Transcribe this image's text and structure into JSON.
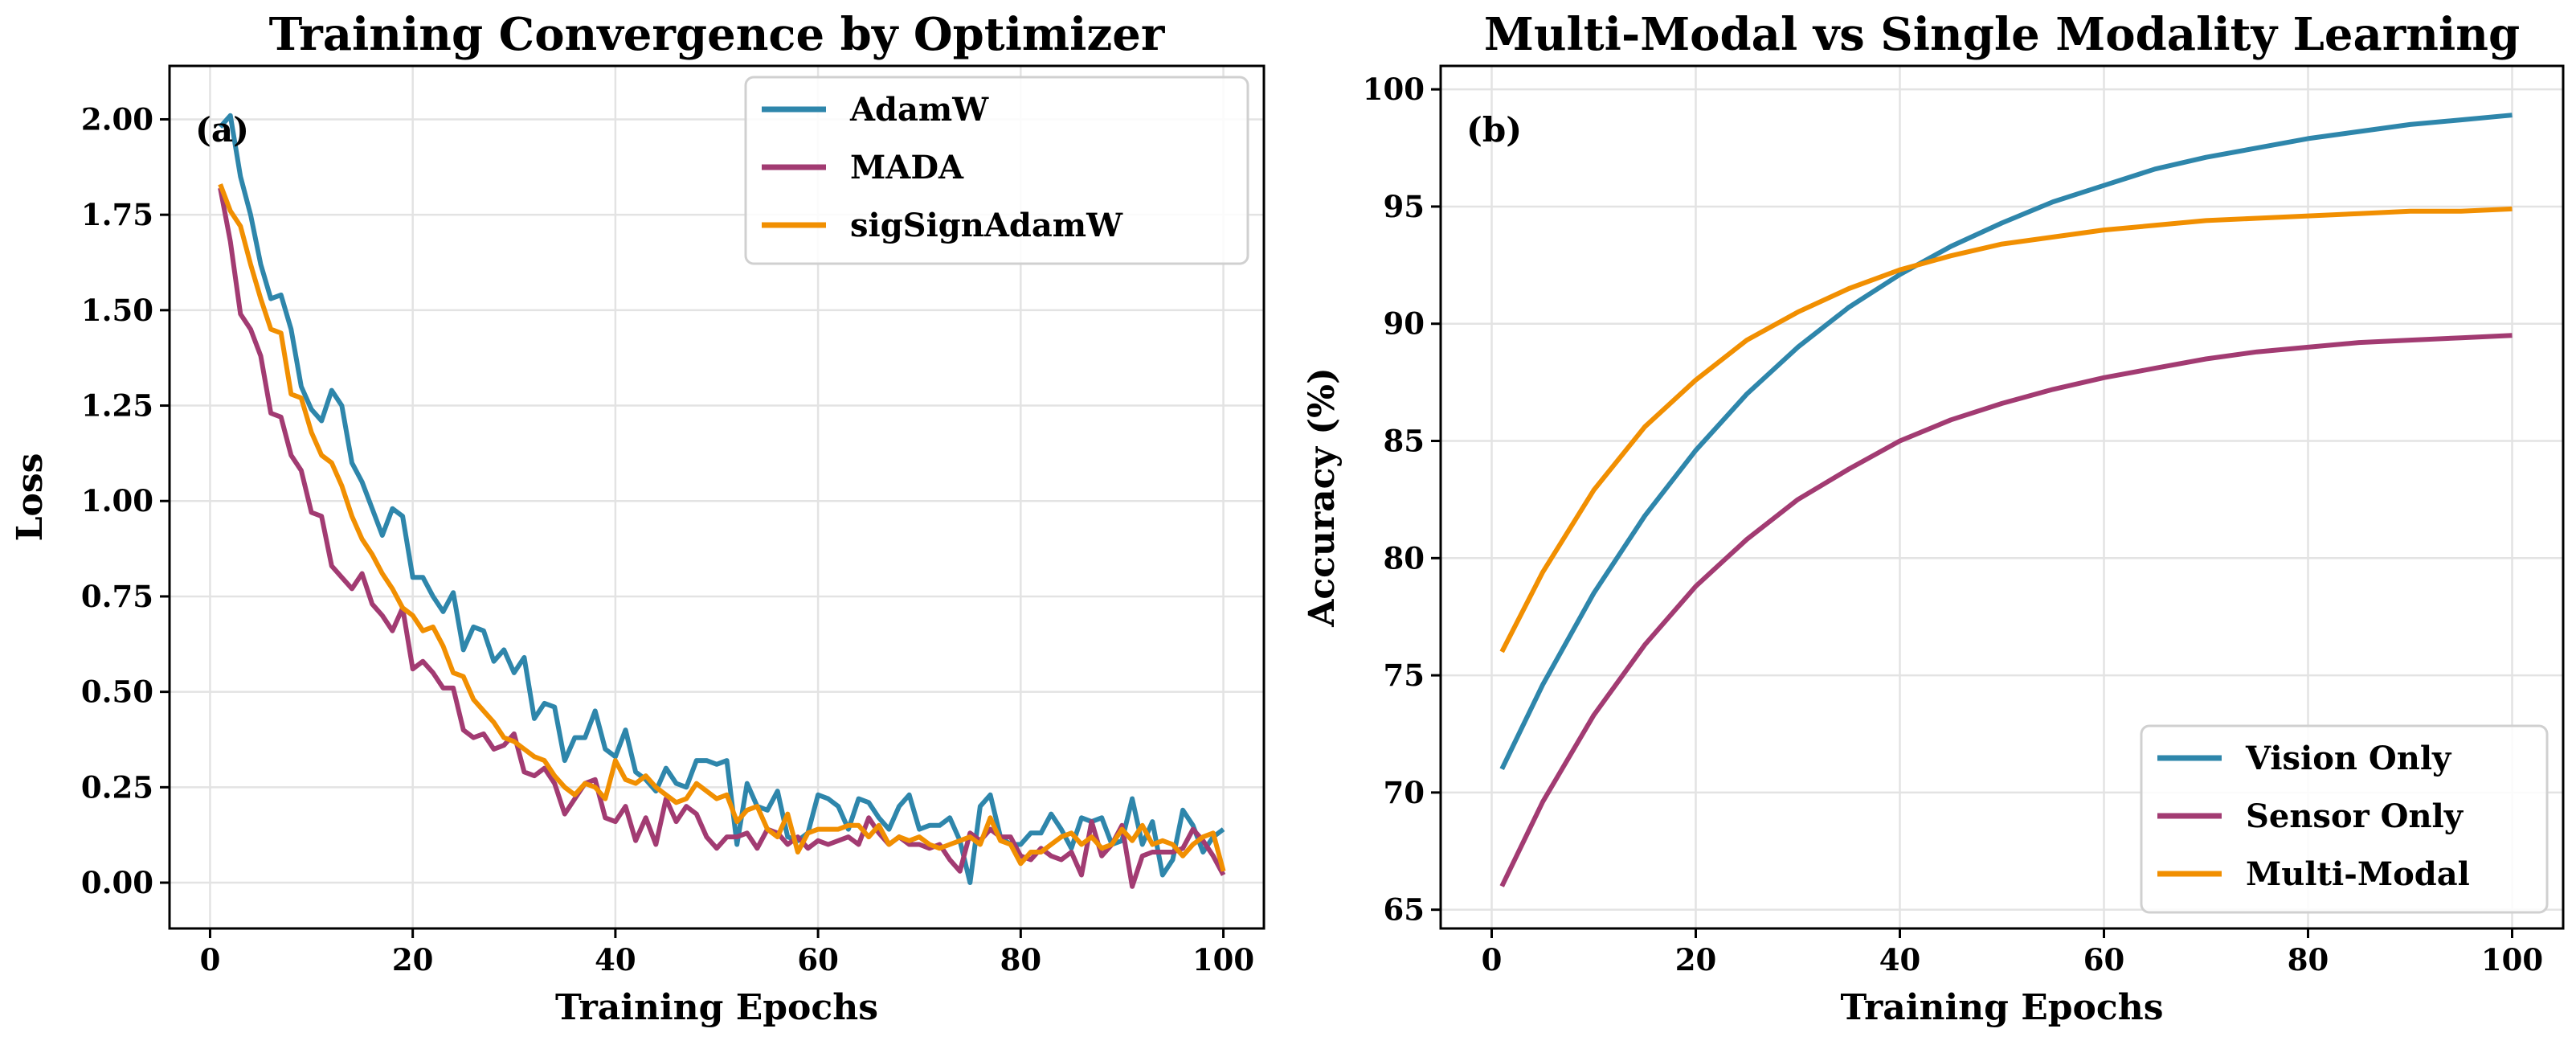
{
  "colors": {
    "blue": "#2e86ab",
    "magenta": "#a23b72",
    "orange": "#f18f01"
  },
  "chart_data": [
    {
      "type": "line",
      "title": "Training Convergence by Optimizer",
      "panel_label": "(a)",
      "xlabel": "Training Epochs",
      "ylabel": "Loss",
      "xlim": [
        -4,
        104
      ],
      "ylim": [
        -0.12,
        2.14
      ],
      "xticks": [
        0,
        20,
        40,
        60,
        80,
        100
      ],
      "xtick_labels": [
        "0",
        "20",
        "40",
        "60",
        "80",
        "100"
      ],
      "yticks": [
        0,
        0.25,
        0.5,
        0.75,
        1.0,
        1.25,
        1.5,
        1.75,
        2.0
      ],
      "ytick_labels": [
        "0.00",
        "0.25",
        "0.50",
        "0.75",
        "1.00",
        "1.25",
        "1.50",
        "1.75",
        "2.00"
      ],
      "grid": true,
      "legend_position": "top-right",
      "x_start": 1,
      "series": [
        {
          "name": "AdamW",
          "color": "#2e86ab",
          "values": [
            1.98,
            2.01,
            1.85,
            1.75,
            1.62,
            1.53,
            1.54,
            1.45,
            1.3,
            1.24,
            1.21,
            1.29,
            1.25,
            1.1,
            1.05,
            0.98,
            0.91,
            0.98,
            0.96,
            0.8,
            0.8,
            0.75,
            0.71,
            0.76,
            0.61,
            0.67,
            0.66,
            0.58,
            0.61,
            0.55,
            0.59,
            0.43,
            0.47,
            0.46,
            0.32,
            0.38,
            0.38,
            0.45,
            0.35,
            0.33,
            0.4,
            0.29,
            0.27,
            0.24,
            0.3,
            0.26,
            0.25,
            0.32,
            0.32,
            0.31,
            0.32,
            0.1,
            0.26,
            0.2,
            0.19,
            0.24,
            0.12,
            0.11,
            0.13,
            0.23,
            0.22,
            0.2,
            0.14,
            0.22,
            0.21,
            0.17,
            0.14,
            0.2,
            0.23,
            0.14,
            0.15,
            0.15,
            0.17,
            0.11,
            0.0,
            0.2,
            0.23,
            0.12,
            0.1,
            0.1,
            0.13,
            0.13,
            0.18,
            0.14,
            0.09,
            0.17,
            0.16,
            0.17,
            0.1,
            0.11,
            0.22,
            0.1,
            0.16,
            0.02,
            0.06,
            0.19,
            0.15,
            0.08,
            0.12,
            0.14
          ]
        },
        {
          "name": "MADA",
          "color": "#a23b72",
          "values": [
            1.82,
            1.68,
            1.49,
            1.45,
            1.38,
            1.23,
            1.22,
            1.12,
            1.08,
            0.97,
            0.96,
            0.83,
            0.8,
            0.77,
            0.81,
            0.73,
            0.7,
            0.66,
            0.72,
            0.56,
            0.58,
            0.55,
            0.51,
            0.51,
            0.4,
            0.38,
            0.39,
            0.35,
            0.36,
            0.39,
            0.29,
            0.28,
            0.3,
            0.26,
            0.18,
            0.22,
            0.26,
            0.27,
            0.17,
            0.16,
            0.2,
            0.11,
            0.17,
            0.1,
            0.22,
            0.16,
            0.2,
            0.18,
            0.12,
            0.09,
            0.12,
            0.12,
            0.13,
            0.09,
            0.14,
            0.13,
            0.1,
            0.12,
            0.09,
            0.11,
            0.1,
            0.11,
            0.12,
            0.1,
            0.17,
            0.13,
            0.1,
            0.12,
            0.1,
            0.1,
            0.09,
            0.1,
            0.06,
            0.03,
            0.13,
            0.11,
            0.14,
            0.12,
            0.12,
            0.07,
            0.06,
            0.09,
            0.07,
            0.06,
            0.08,
            0.02,
            0.16,
            0.07,
            0.1,
            0.15,
            -0.01,
            0.07,
            0.08,
            0.08,
            0.08,
            0.09,
            0.14,
            0.11,
            0.07,
            0.02
          ]
        },
        {
          "name": "sigSignAdamW",
          "color": "#f18f01",
          "values": [
            1.83,
            1.76,
            1.72,
            1.62,
            1.53,
            1.45,
            1.44,
            1.28,
            1.27,
            1.18,
            1.12,
            1.1,
            1.04,
            0.96,
            0.9,
            0.86,
            0.81,
            0.77,
            0.72,
            0.7,
            0.66,
            0.67,
            0.62,
            0.55,
            0.54,
            0.48,
            0.45,
            0.42,
            0.38,
            0.37,
            0.35,
            0.33,
            0.32,
            0.28,
            0.25,
            0.23,
            0.26,
            0.25,
            0.22,
            0.32,
            0.27,
            0.26,
            0.28,
            0.25,
            0.23,
            0.21,
            0.22,
            0.26,
            0.24,
            0.22,
            0.23,
            0.16,
            0.19,
            0.2,
            0.14,
            0.12,
            0.18,
            0.08,
            0.13,
            0.14,
            0.14,
            0.14,
            0.15,
            0.15,
            0.12,
            0.15,
            0.1,
            0.12,
            0.11,
            0.12,
            0.1,
            0.09,
            0.1,
            0.11,
            0.12,
            0.1,
            0.17,
            0.11,
            0.1,
            0.05,
            0.08,
            0.08,
            0.1,
            0.12,
            0.13,
            0.1,
            0.12,
            0.09,
            0.1,
            0.14,
            0.11,
            0.15,
            0.1,
            0.11,
            0.1,
            0.07,
            0.1,
            0.12,
            0.13,
            0.03
          ]
        }
      ]
    },
    {
      "type": "line",
      "title": "Multi-Modal vs Single Modality Learning",
      "panel_label": "(b)",
      "xlabel": "Training Epochs",
      "ylabel": "Accuracy (%)",
      "xlim": [
        -5,
        105
      ],
      "ylim": [
        64.2,
        101
      ],
      "xticks": [
        0,
        20,
        40,
        60,
        80,
        100
      ],
      "xtick_labels": [
        "0",
        "20",
        "40",
        "60",
        "80",
        "100"
      ],
      "yticks": [
        65,
        70,
        75,
        80,
        85,
        90,
        95,
        100
      ],
      "ytick_labels": [
        "65",
        "70",
        "75",
        "80",
        "85",
        "90",
        "95",
        "100"
      ],
      "grid": true,
      "legend_position": "bottom-right",
      "x": [
        1,
        5,
        10,
        15,
        20,
        25,
        30,
        35,
        40,
        45,
        50,
        55,
        60,
        65,
        70,
        75,
        80,
        85,
        90,
        95,
        100
      ],
      "series": [
        {
          "name": "Vision Only",
          "color": "#2e86ab",
          "values": [
            71.0,
            74.6,
            78.5,
            81.8,
            84.6,
            87.0,
            89.0,
            90.7,
            92.1,
            93.3,
            94.3,
            95.2,
            95.9,
            96.6,
            97.1,
            97.5,
            97.9,
            98.2,
            98.5,
            98.7,
            98.9
          ]
        },
        {
          "name": "Sensor Only",
          "color": "#a23b72",
          "values": [
            66.0,
            69.6,
            73.3,
            76.3,
            78.8,
            80.8,
            82.5,
            83.8,
            85.0,
            85.9,
            86.6,
            87.2,
            87.7,
            88.1,
            88.5,
            88.8,
            89.0,
            89.2,
            89.3,
            89.4,
            89.5
          ]
        },
        {
          "name": "Multi-Modal",
          "color": "#f18f01",
          "values": [
            76.0,
            79.4,
            82.9,
            85.6,
            87.6,
            89.3,
            90.5,
            91.5,
            92.3,
            92.9,
            93.4,
            93.7,
            94.0,
            94.2,
            94.4,
            94.5,
            94.6,
            94.7,
            94.8,
            94.8,
            94.9
          ]
        }
      ]
    }
  ]
}
